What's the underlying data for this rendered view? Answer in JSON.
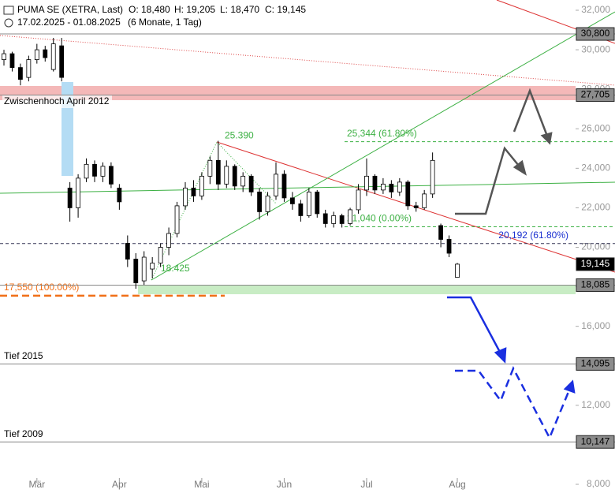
{
  "chart_data": {
    "type": "candlestick",
    "header": {
      "name": "PUMA SE (XETRA, Last)",
      "open": "O: 18,480",
      "high": "H: 19,205",
      "low": "L: 18,470",
      "close": "C: 19,145",
      "range": "17.02.2025 - 01.08.2025",
      "period": "(6 Monate, 1 Tag)"
    },
    "categories": [
      null,
      null,
      null,
      null,
      "Mär",
      null,
      null,
      null,
      null,
      null,
      null,
      null,
      null,
      null,
      "Apr",
      null,
      null,
      null,
      null,
      null,
      null,
      null,
      null,
      null,
      "Mai",
      null,
      null,
      null,
      null,
      null,
      null,
      null,
      null,
      null,
      "Jun",
      null,
      null,
      null,
      null,
      null,
      null,
      null,
      null,
      null,
      "Jul",
      null,
      null,
      null,
      null,
      null,
      null,
      null,
      null,
      null,
      null,
      "Aug"
    ],
    "open": [
      29500,
      29800,
      29100,
      28600,
      29500,
      30000,
      29000,
      30200,
      23000,
      22000,
      23500,
      24200,
      23600,
      24100,
      23000,
      20200,
      19400,
      18300,
      18900,
      19200,
      20000,
      20700,
      22100,
      23000,
      22600,
      23600,
      24400,
      23200,
      24100,
      23100,
      23600,
      22800,
      21800,
      22600,
      23700,
      22500,
      22200,
      21600,
      22800,
      21700,
      21200,
      21600,
      21200,
      21900,
      22900,
      23600,
      22900,
      23200,
      22800,
      23300,
      22100,
      22000,
      22700,
      21100,
      20400,
      18480
    ],
    "high": [
      30000,
      29900,
      29300,
      29700,
      30300,
      30200,
      30600,
      30600,
      23300,
      23700,
      24500,
      24400,
      24300,
      24300,
      23200,
      20600,
      19700,
      19800,
      19500,
      20200,
      21000,
      22300,
      23300,
      23400,
      23800,
      24600,
      25390,
      24400,
      24200,
      23800,
      23700,
      23000,
      22800,
      24300,
      23900,
      22800,
      22400,
      23000,
      22900,
      21900,
      21800,
      21700,
      22000,
      23200,
      24500,
      23700,
      23500,
      23400,
      23500,
      23400,
      22300,
      22900,
      24800,
      21200,
      20600,
      19205
    ],
    "low": [
      29200,
      28900,
      28200,
      28400,
      29300,
      29400,
      28900,
      28400,
      21300,
      21500,
      23300,
      23300,
      23300,
      23000,
      21900,
      19000,
      17900,
      18100,
      18425,
      19000,
      19600,
      20500,
      21900,
      22300,
      22400,
      23200,
      22900,
      23000,
      22900,
      22800,
      22600,
      21400,
      21600,
      22400,
      22300,
      21900,
      21300,
      21500,
      21500,
      21000,
      21000,
      21000,
      21100,
      21700,
      22600,
      22700,
      22700,
      22500,
      22600,
      21900,
      21800,
      21900,
      22500,
      20000,
      19500,
      18470
    ],
    "close": [
      29800,
      29100,
      28500,
      29500,
      30000,
      29600,
      30300,
      28600,
      22000,
      23500,
      24200,
      23600,
      24100,
      23200,
      22300,
      19400,
      18200,
      19500,
      19200,
      20000,
      20700,
      22100,
      23000,
      22600,
      23600,
      24400,
      23200,
      24100,
      23100,
      23600,
      22800,
      21800,
      22600,
      23700,
      22500,
      22200,
      21600,
      22800,
      21700,
      21200,
      21600,
      21200,
      21900,
      22900,
      23600,
      22900,
      23200,
      22800,
      23300,
      22100,
      22000,
      22700,
      24400,
      20400,
      19700,
      19145
    ],
    "ylim": [
      8000,
      32000
    ],
    "yticks": [
      {
        "value": 32000,
        "label": "32,000"
      },
      {
        "value": 30000,
        "label": "30,000"
      },
      {
        "value": 28000,
        "label": "28,000"
      },
      {
        "value": 26000,
        "label": "26,000"
      },
      {
        "value": 24000,
        "label": "24,000"
      },
      {
        "value": 22000,
        "label": "22,000"
      },
      {
        "value": 20000,
        "label": "20,000"
      },
      {
        "value": 18000,
        "label": "18,000"
      },
      {
        "value": 16000,
        "label": "16,000"
      },
      {
        "value": 14000,
        "label": "14,000"
      },
      {
        "value": 12000,
        "label": "12,000"
      },
      {
        "value": 10000,
        "label": "10,000"
      },
      {
        "value": 8000,
        "label": "8,000"
      }
    ],
    "levels": [
      {
        "value": 30800,
        "label": "30,800",
        "color": "#8c8c8c"
      },
      {
        "value": 27705,
        "label": "27,705",
        "color": "#8c8c8c"
      },
      {
        "value": 19145,
        "label": "19,145",
        "color": "#000000"
      },
      {
        "value": 18085,
        "label": "18,085",
        "color": "#8c8c8c"
      },
      {
        "value": 14095,
        "label": "14,095",
        "color": "#8c8c8c"
      },
      {
        "value": 10147,
        "label": "10,147",
        "color": "#8c8c8c"
      }
    ],
    "fibs": [
      {
        "value": 25344,
        "label": "25,344 (61.80%)",
        "color": "#3cb043"
      },
      {
        "value": 21040,
        "label": "21,040 (0.00%)",
        "color": "#3cb043"
      },
      {
        "value": 20192,
        "label": "20,192 (61.80%)",
        "color": "#1a2fd0"
      },
      {
        "value": 17550,
        "label": "17,550 (100.00%)",
        "color": "#f07018"
      }
    ],
    "points": [
      {
        "value": 25390,
        "label": "25.390"
      },
      {
        "value": 18425,
        "label": "18.425"
      }
    ],
    "notes": [
      "Zwischenhoch April 2012",
      "Tief 2015",
      "Tief 2009"
    ]
  }
}
